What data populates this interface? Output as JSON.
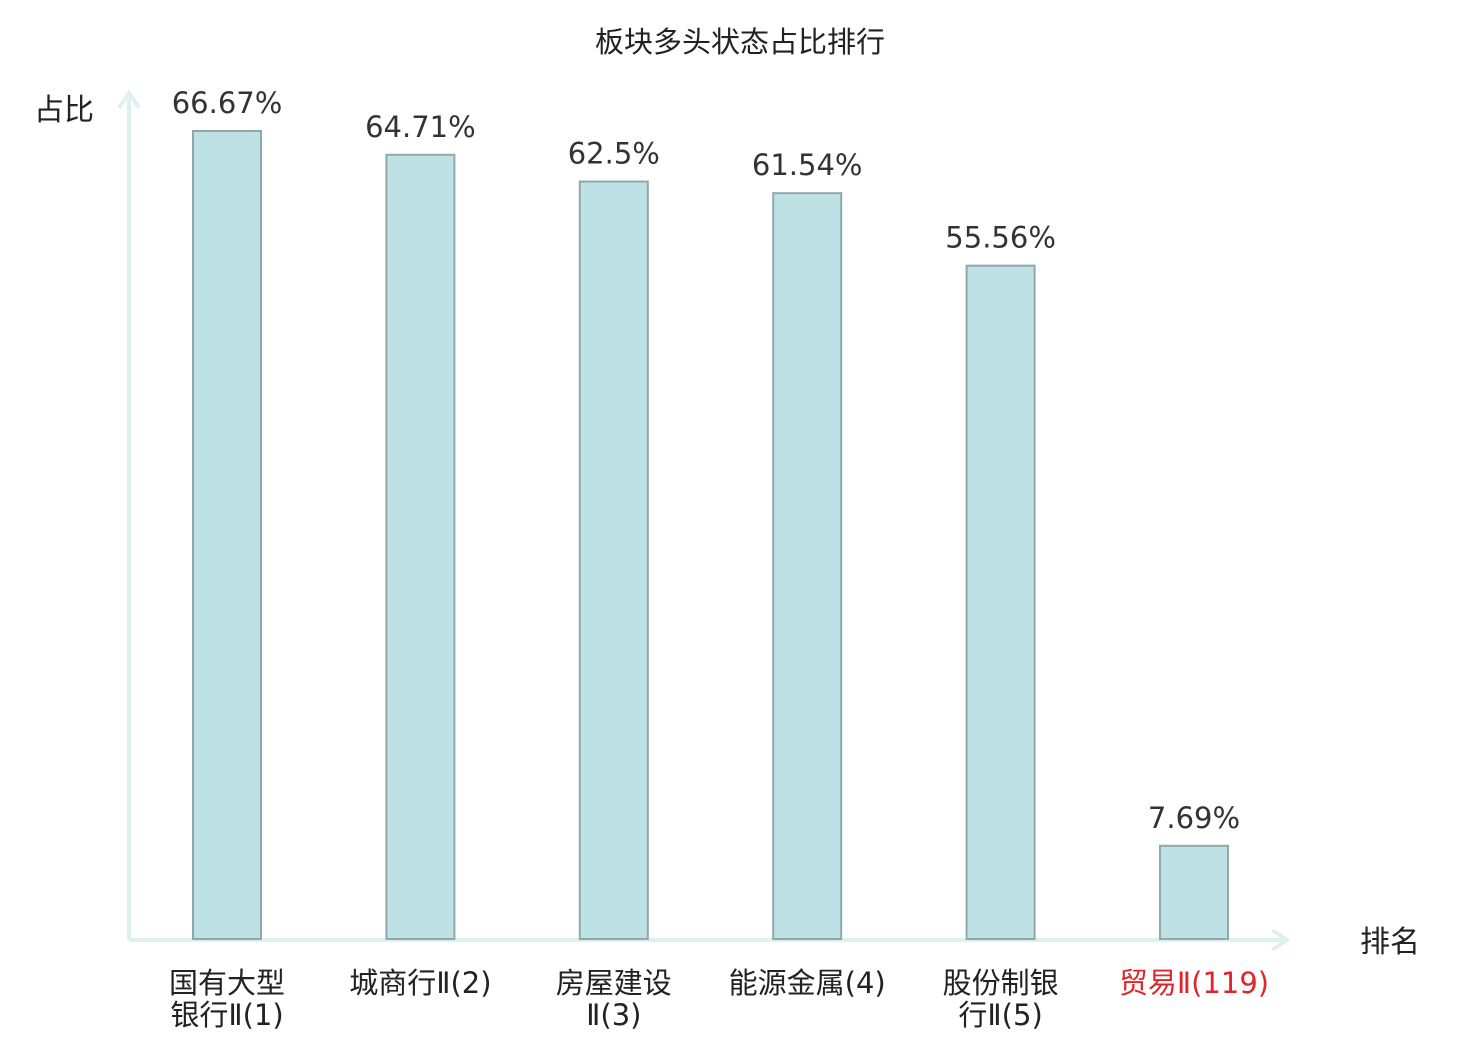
{
  "chart_data": {
    "type": "bar",
    "title": "板块多头状态占比排行",
    "ylabel": "占比",
    "xlabel": "排名",
    "categories": [
      [
        "国有大型",
        "银行Ⅱ(1)"
      ],
      [
        "城商行Ⅱ(2)"
      ],
      [
        "房屋建设",
        "Ⅱ(3)"
      ],
      [
        "能源金属(4)"
      ],
      [
        "股份制银",
        "行Ⅱ(5)"
      ],
      [
        "贸易Ⅱ(119)"
      ]
    ],
    "values": [
      66.67,
      64.71,
      62.5,
      61.54,
      55.56,
      7.69
    ],
    "value_labels": [
      "66.67%",
      "64.71%",
      "62.5%",
      "61.54%",
      "55.56%",
      "7.69%"
    ],
    "highlight_index": 5,
    "ylim": [
      0,
      70
    ],
    "grid": false,
    "colors": {
      "bar_fill": "#bde1e4",
      "bar_stroke": "#8fa9ab",
      "axis": "#dff1ef",
      "highlight_text": "#e0262b"
    }
  }
}
